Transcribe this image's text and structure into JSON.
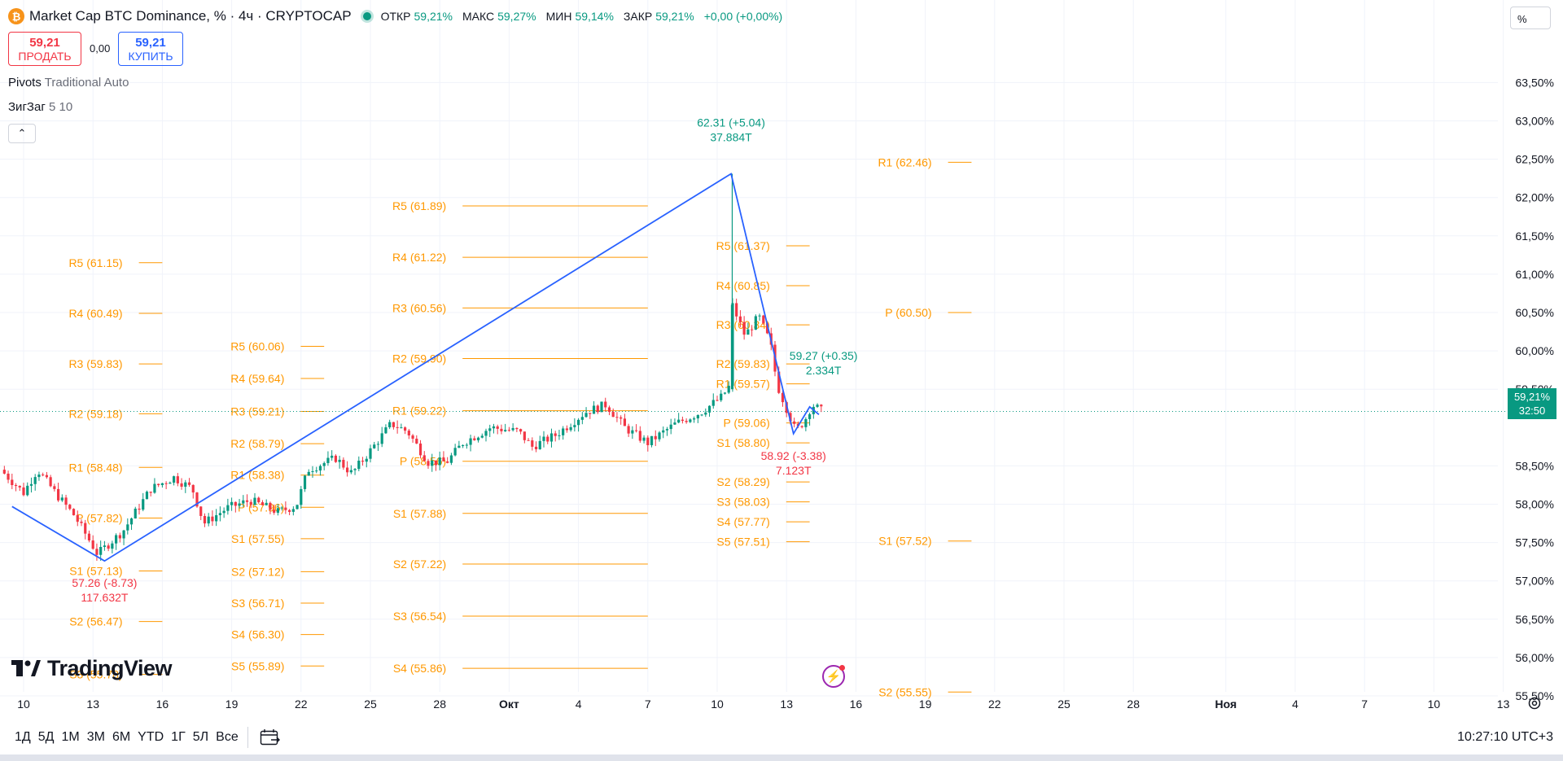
{
  "header": {
    "coin_glyph": "₿",
    "title": "Market Cap BTC Dominance, % · 4ч · CRYPTOCAP",
    "ohlc": [
      {
        "key": "ОТКР",
        "value": "59,21%"
      },
      {
        "key": "МАКС",
        "value": "59,27%"
      },
      {
        "key": "МИН",
        "value": "59,14%"
      },
      {
        "key": "ЗАКР",
        "value": "59,21%"
      },
      {
        "key": "",
        "value": "+0,00 (+0,00%)"
      }
    ]
  },
  "trade": {
    "sell_price": "59,21",
    "sell_label": "ПРОДАТЬ",
    "spread": "0,00",
    "buy_price": "59,21",
    "buy_label": "КУПИТЬ"
  },
  "indicators": {
    "pivots_name": "Pivots",
    "pivots_settings": "Traditional Auto",
    "zigzag_name": "ЗигЗаг",
    "zigzag_settings": "5 10",
    "collapse_glyph": "⌃"
  },
  "scale": {
    "unit_button": "%",
    "current_price": "59,21%",
    "countdown": "32:50"
  },
  "brand": "TradingView",
  "timeframes": [
    "1Д",
    "5Д",
    "1М",
    "3М",
    "6М",
    "YTD",
    "1Г",
    "5Л",
    "Все"
  ],
  "clock": "10:27:10 UTC+3",
  "colors": {
    "up": "#089981",
    "down": "#f23645",
    "pivot": "#ff9800",
    "zigzag": "#2962ff"
  },
  "chart_data": {
    "type": "candlestick",
    "ylim": [
      55.35,
      63.85
    ],
    "yticks": [
      {
        "v": 63.5,
        "label": "63,50%"
      },
      {
        "v": 63.0,
        "label": "63,00%"
      },
      {
        "v": 62.5,
        "label": "62,50%"
      },
      {
        "v": 62.0,
        "label": "62,00%"
      },
      {
        "v": 61.5,
        "label": "61,50%"
      },
      {
        "v": 61.0,
        "label": "61,00%"
      },
      {
        "v": 60.5,
        "label": "60,50%"
      },
      {
        "v": 60.0,
        "label": "60,00%"
      },
      {
        "v": 59.5,
        "label": "59,50%"
      },
      {
        "v": 58.5,
        "label": "58,50%"
      },
      {
        "v": 58.0,
        "label": "58,00%"
      },
      {
        "v": 57.5,
        "label": "57,50%"
      },
      {
        "v": 57.0,
        "label": "57,00%"
      },
      {
        "v": 56.5,
        "label": "56,50%"
      },
      {
        "v": 56.0,
        "label": "56,00%"
      },
      {
        "v": 55.5,
        "label": "55,50%"
      }
    ],
    "xticks": [
      {
        "d": 0,
        "label": "10"
      },
      {
        "d": 3,
        "label": "13"
      },
      {
        "d": 6,
        "label": "16"
      },
      {
        "d": 9,
        "label": "19"
      },
      {
        "d": 12,
        "label": "22"
      },
      {
        "d": 15,
        "label": "25"
      },
      {
        "d": 18,
        "label": "28"
      },
      {
        "d": 21,
        "label": "Окт"
      },
      {
        "d": 24,
        "label": "4"
      },
      {
        "d": 27,
        "label": "7"
      },
      {
        "d": 30,
        "label": "10"
      },
      {
        "d": 33,
        "label": "13"
      },
      {
        "d": 36,
        "label": "16"
      },
      {
        "d": 39,
        "label": "19"
      },
      {
        "d": 42,
        "label": "22"
      },
      {
        "d": 45,
        "label": "25"
      },
      {
        "d": 48,
        "label": "28"
      },
      {
        "d": 52,
        "label": "Ноя"
      },
      {
        "d": 55,
        "label": "4"
      },
      {
        "d": 58,
        "label": "7"
      },
      {
        "d": 61,
        "label": "10"
      },
      {
        "d": 64,
        "label": "13"
      }
    ],
    "pivot_periods": [
      {
        "x0": -1.0,
        "x1": 6.0,
        "levels": [
          {
            "name": "R5",
            "value": 61.15
          },
          {
            "name": "R4",
            "value": 60.49
          },
          {
            "name": "R3",
            "value": 59.83
          },
          {
            "name": "R2",
            "value": 59.18
          },
          {
            "name": "R1",
            "value": 58.48
          },
          {
            "name": "P",
            "value": 57.82
          },
          {
            "name": "S1",
            "value": 57.13
          },
          {
            "name": "S2",
            "value": 56.47
          },
          {
            "name": "S3",
            "value": 55.78
          }
        ]
      },
      {
        "x0": 6.0,
        "x1": 13.0,
        "levels": [
          {
            "name": "R5",
            "value": 60.06
          },
          {
            "name": "R4",
            "value": 59.64
          },
          {
            "name": "R3",
            "value": 59.21
          },
          {
            "name": "R2",
            "value": 58.79
          },
          {
            "name": "R1",
            "value": 58.38
          },
          {
            "name": "P",
            "value": 57.96
          },
          {
            "name": "S1",
            "value": 57.55
          },
          {
            "name": "S2",
            "value": 57.12
          },
          {
            "name": "S3",
            "value": 56.71
          },
          {
            "name": "S4",
            "value": 56.3
          },
          {
            "name": "S5",
            "value": 55.89
          }
        ]
      },
      {
        "x0": 13.0,
        "x1": 27.0,
        "levels": [
          {
            "name": "R5",
            "value": 61.89
          },
          {
            "name": "R4",
            "value": 61.22
          },
          {
            "name": "R3",
            "value": 60.56
          },
          {
            "name": "R2",
            "value": 59.9
          },
          {
            "name": "R1",
            "value": 59.22
          },
          {
            "name": "P",
            "value": 58.56
          },
          {
            "name": "S1",
            "value": 57.88
          },
          {
            "name": "S2",
            "value": 57.22
          },
          {
            "name": "S3",
            "value": 56.54
          },
          {
            "name": "S4",
            "value": 55.86
          }
        ]
      },
      {
        "x0": 27.0,
        "x1": 34.0,
        "levels": [
          {
            "name": "R5",
            "value": 61.37
          },
          {
            "name": "R4",
            "value": 60.85
          },
          {
            "name": "R3",
            "value": 60.34
          },
          {
            "name": "R2",
            "value": 59.83
          },
          {
            "name": "R1",
            "value": 59.57
          },
          {
            "name": "P",
            "value": 59.06
          },
          {
            "name": "S1",
            "value": 58.8
          },
          {
            "name": "S2",
            "value": 58.29
          },
          {
            "name": "S3",
            "value": 58.03
          },
          {
            "name": "S4",
            "value": 57.77
          },
          {
            "name": "S5",
            "value": 57.51
          }
        ]
      },
      {
        "x0": 34.0,
        "x1": 41.0,
        "levels": [
          {
            "name": "R1",
            "value": 62.46
          },
          {
            "name": "P",
            "value": 60.5
          },
          {
            "name": "S1",
            "value": 57.52
          },
          {
            "name": "S2",
            "value": 55.55
          }
        ]
      }
    ],
    "zigzag": [
      {
        "d": -0.5,
        "v": 57.97
      },
      {
        "d": 3.5,
        "v": 57.26
      },
      {
        "d": 30.6,
        "v": 62.31
      },
      {
        "d": 33.3,
        "v": 58.92
      },
      {
        "d": 34.0,
        "v": 59.27
      },
      {
        "d": 34.4,
        "v": 59.17
      }
    ],
    "annotations": [
      {
        "d": 3.5,
        "v": 57.26,
        "pos": "below",
        "color": "down",
        "lines": [
          "57.26 (-8.73)",
          "117.632T"
        ]
      },
      {
        "d": 30.6,
        "v": 62.31,
        "pos": "above",
        "color": "up",
        "lines": [
          "62.31 (+5.04)",
          "37.884T"
        ]
      },
      {
        "d": 33.3,
        "v": 58.92,
        "pos": "below",
        "color": "down",
        "lines": [
          "58.92 (-3.38)",
          "7.123T"
        ]
      },
      {
        "d": 34.6,
        "v": 59.27,
        "pos": "above",
        "color": "up",
        "lines": [
          "59.27 (+0.35)",
          "2.334T"
        ]
      }
    ],
    "trend_anchors": [
      {
        "d": -1.0,
        "v": 58.45
      },
      {
        "d": 0.0,
        "v": 58.15
      },
      {
        "d": 0.6,
        "v": 58.45
      },
      {
        "d": 1.5,
        "v": 58.1
      },
      {
        "d": 2.2,
        "v": 57.85
      },
      {
        "d": 3.2,
        "v": 57.35
      },
      {
        "d": 4.3,
        "v": 57.65
      },
      {
        "d": 5.5,
        "v": 58.2
      },
      {
        "d": 6.5,
        "v": 58.35
      },
      {
        "d": 7.3,
        "v": 58.2
      },
      {
        "d": 7.8,
        "v": 57.75
      },
      {
        "d": 8.8,
        "v": 57.95
      },
      {
        "d": 9.8,
        "v": 58.05
      },
      {
        "d": 11.0,
        "v": 57.9
      },
      {
        "d": 11.8,
        "v": 57.98
      },
      {
        "d": 12.3,
        "v": 58.45
      },
      {
        "d": 13.5,
        "v": 58.6
      },
      {
        "d": 14.2,
        "v": 58.4
      },
      {
        "d": 15.0,
        "v": 58.7
      },
      {
        "d": 15.9,
        "v": 59.05
      },
      {
        "d": 16.6,
        "v": 58.95
      },
      {
        "d": 17.5,
        "v": 58.55
      },
      {
        "d": 18.3,
        "v": 58.55
      },
      {
        "d": 19.0,
        "v": 58.8
      },
      {
        "d": 20.2,
        "v": 59.0
      },
      {
        "d": 21.4,
        "v": 58.95
      },
      {
        "d": 22.0,
        "v": 58.75
      },
      {
        "d": 23.0,
        "v": 58.9
      },
      {
        "d": 24.3,
        "v": 59.2
      },
      {
        "d": 25.2,
        "v": 59.3
      },
      {
        "d": 26.0,
        "v": 59.0
      },
      {
        "d": 27.0,
        "v": 58.8
      },
      {
        "d": 28.2,
        "v": 59.05
      },
      {
        "d": 29.3,
        "v": 59.2
      },
      {
        "d": 30.2,
        "v": 59.4
      },
      {
        "d": 30.55,
        "v": 59.55
      },
      {
        "d": 30.65,
        "v": 60.6
      },
      {
        "d": 31.2,
        "v": 60.2
      },
      {
        "d": 31.8,
        "v": 60.45
      },
      {
        "d": 32.3,
        "v": 60.1
      },
      {
        "d": 32.6,
        "v": 59.55
      },
      {
        "d": 33.2,
        "v": 59.1
      },
      {
        "d": 33.4,
        "v": 58.95
      },
      {
        "d": 33.8,
        "v": 59.1
      },
      {
        "d": 34.1,
        "v": 59.3
      },
      {
        "d": 34.6,
        "v": 59.2
      }
    ]
  }
}
